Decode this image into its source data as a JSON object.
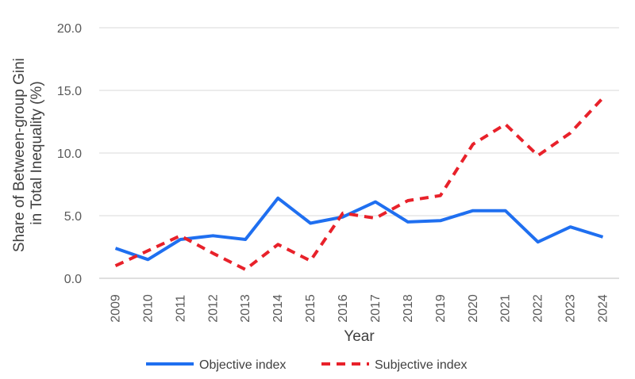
{
  "chart_data": {
    "type": "line",
    "title": "",
    "xlabel": "Year",
    "ylabel": [
      "Share of Between-group Gini",
      "in Total Inequality (%)"
    ],
    "categories": [
      "2009",
      "2010",
      "2011",
      "2012",
      "2013",
      "2014",
      "2015",
      "2016",
      "2017",
      "2018",
      "2019",
      "2020",
      "2021",
      "2022",
      "2023",
      "2024"
    ],
    "ylim": [
      0,
      20
    ],
    "yticks": [
      "0.0",
      "5.0",
      "10.0",
      "15.0",
      "20.0"
    ],
    "grid": true,
    "legend_position": "bottom",
    "series": [
      {
        "name": "Objective index",
        "color": "#1f6ff0",
        "style": "solid",
        "values": [
          2.4,
          1.5,
          3.1,
          3.4,
          3.1,
          6.4,
          4.4,
          4.9,
          6.1,
          4.5,
          4.6,
          5.4,
          5.4,
          2.9,
          4.1,
          3.3
        ]
      },
      {
        "name": "Subjective index",
        "color": "#e8212a",
        "style": "dashed",
        "values": [
          1.0,
          2.2,
          3.4,
          2.0,
          0.7,
          2.7,
          1.4,
          5.2,
          4.8,
          6.2,
          6.6,
          10.7,
          12.3,
          9.8,
          11.6,
          14.4
        ]
      }
    ]
  }
}
